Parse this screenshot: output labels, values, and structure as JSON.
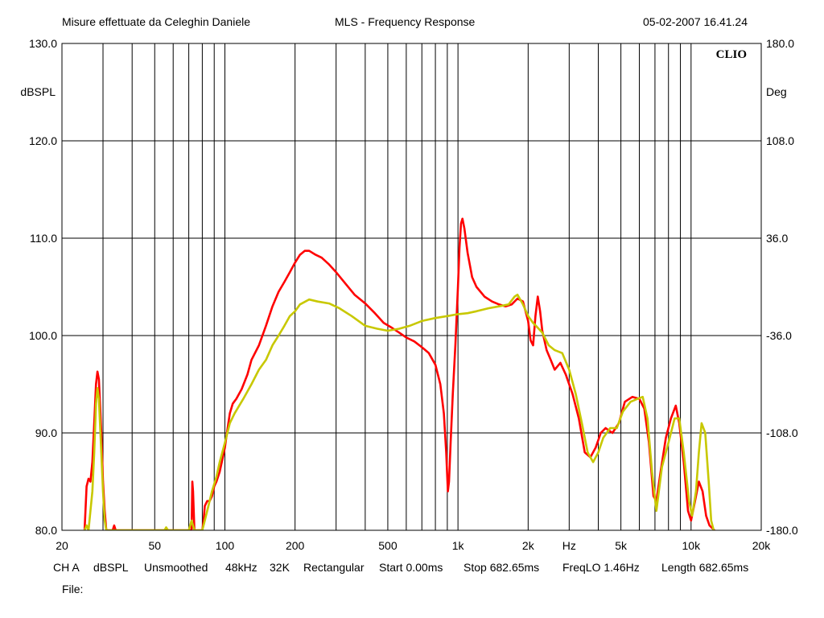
{
  "header": {
    "left": "Misure effettuate da Celeghin Daniele",
    "center": "MLS - Frequency Response",
    "right": "05-02-2007 16.41.24"
  },
  "brand": "CLIO",
  "footer": {
    "items": [
      "CH A",
      "dBSPL",
      "Unsmoothed",
      "48kHz",
      "32K",
      "Rectangular",
      "Start 0.00ms",
      "Stop 682.65ms",
      "FreqLO 1.46Hz",
      "Length 682.65ms"
    ],
    "file_label": "File:"
  },
  "chart_data": {
    "type": "line",
    "title": "MLS - Frequency Response",
    "xlabel": "Hz",
    "ylabel": "dBSPL",
    "y2label": "Deg",
    "xscale": "log",
    "xlim": [
      20,
      20000
    ],
    "ylim": [
      80,
      130
    ],
    "y2lim": [
      -180,
      180
    ],
    "grid": true,
    "x_ticks": [
      {
        "v": 20,
        "label": "20"
      },
      {
        "v": 50,
        "label": "50"
      },
      {
        "v": 100,
        "label": "100"
      },
      {
        "v": 200,
        "label": "200"
      },
      {
        "v": 500,
        "label": "500"
      },
      {
        "v": 1000,
        "label": "1k"
      },
      {
        "v": 2000,
        "label": "2k"
      },
      {
        "v": 5000,
        "label": "5k"
      },
      {
        "v": 10000,
        "label": "10k"
      },
      {
        "v": 20000,
        "label": "20k"
      }
    ],
    "y_ticks": [
      {
        "v": 130,
        "label": "130.0"
      },
      {
        "v": 120,
        "label": "120.0"
      },
      {
        "v": 110,
        "label": "110.0"
      },
      {
        "v": 100,
        "label": "100.0"
      },
      {
        "v": 90,
        "label": "90.0"
      },
      {
        "v": 80,
        "label": "80.0"
      }
    ],
    "y2_ticks": [
      {
        "v": 180,
        "label": "180.0"
      },
      {
        "v": 108,
        "label": "108.0"
      },
      {
        "v": 36,
        "label": "36.0"
      },
      {
        "v": -36,
        "label": "-36.0"
      },
      {
        "v": -108,
        "label": "-108.0"
      },
      {
        "v": -180,
        "label": "-180.0"
      }
    ],
    "series": [
      {
        "color": "#ff0000",
        "points": [
          [
            25,
            80
          ],
          [
            25.5,
            84.5
          ],
          [
            26,
            85.3
          ],
          [
            26.5,
            85
          ],
          [
            27,
            87
          ],
          [
            27.5,
            91
          ],
          [
            28,
            95
          ],
          [
            28.4,
            96.3
          ],
          [
            28.8,
            95.5
          ],
          [
            29.5,
            90
          ],
          [
            30,
            85
          ],
          [
            30.5,
            82
          ],
          [
            31,
            80
          ],
          [
            33,
            80
          ],
          [
            33.5,
            80.5
          ],
          [
            34,
            80
          ],
          [
            72,
            80
          ],
          [
            72.5,
            85
          ],
          [
            73,
            84
          ],
          [
            74,
            80
          ],
          [
            80,
            80
          ],
          [
            81,
            81
          ],
          [
            82,
            82.5
          ],
          [
            84,
            83
          ],
          [
            86,
            83
          ],
          [
            88,
            83.5
          ],
          [
            90,
            84.5
          ],
          [
            92,
            85
          ],
          [
            95,
            86
          ],
          [
            98,
            87.5
          ],
          [
            100,
            88.5
          ],
          [
            102,
            90
          ],
          [
            105,
            92
          ],
          [
            108,
            93
          ],
          [
            112,
            93.5
          ],
          [
            118,
            94.5
          ],
          [
            125,
            96
          ],
          [
            130,
            97.5
          ],
          [
            140,
            99
          ],
          [
            150,
            101
          ],
          [
            160,
            103
          ],
          [
            170,
            104.5
          ],
          [
            180,
            105.5
          ],
          [
            190,
            106.5
          ],
          [
            200,
            107.5
          ],
          [
            210,
            108.3
          ],
          [
            220,
            108.7
          ],
          [
            230,
            108.7
          ],
          [
            245,
            108.3
          ],
          [
            260,
            108
          ],
          [
            280,
            107.3
          ],
          [
            300,
            106.5
          ],
          [
            330,
            105.3
          ],
          [
            360,
            104.2
          ],
          [
            400,
            103.3
          ],
          [
            440,
            102.3
          ],
          [
            480,
            101.3
          ],
          [
            520,
            100.8
          ],
          [
            560,
            100.3
          ],
          [
            600,
            99.8
          ],
          [
            650,
            99.4
          ],
          [
            700,
            98.8
          ],
          [
            750,
            98.2
          ],
          [
            800,
            97
          ],
          [
            840,
            95
          ],
          [
            870,
            92
          ],
          [
            890,
            88
          ],
          [
            905,
            84
          ],
          [
            915,
            85
          ],
          [
            930,
            89
          ],
          [
            950,
            94
          ],
          [
            975,
            99
          ],
          [
            1000,
            105
          ],
          [
            1015,
            109
          ],
          [
            1030,
            111.5
          ],
          [
            1045,
            112
          ],
          [
            1065,
            111
          ],
          [
            1100,
            108.5
          ],
          [
            1150,
            106
          ],
          [
            1200,
            105
          ],
          [
            1300,
            104
          ],
          [
            1400,
            103.5
          ],
          [
            1500,
            103.2
          ],
          [
            1600,
            103
          ],
          [
            1700,
            103.2
          ],
          [
            1800,
            103.8
          ],
          [
            1900,
            103.5
          ],
          [
            2000,
            101.5
          ],
          [
            2050,
            99.5
          ],
          [
            2100,
            99
          ],
          [
            2150,
            102
          ],
          [
            2200,
            104
          ],
          [
            2250,
            102.5
          ],
          [
            2300,
            100.5
          ],
          [
            2400,
            98.5
          ],
          [
            2500,
            97.5
          ],
          [
            2600,
            96.5
          ],
          [
            2750,
            97.2
          ],
          [
            2900,
            96
          ],
          [
            3100,
            94
          ],
          [
            3300,
            91.5
          ],
          [
            3500,
            88
          ],
          [
            3700,
            87.5
          ],
          [
            3900,
            88.5
          ],
          [
            4100,
            90
          ],
          [
            4300,
            90.5
          ],
          [
            4600,
            90
          ],
          [
            4900,
            91
          ],
          [
            5200,
            93.2
          ],
          [
            5600,
            93.7
          ],
          [
            6000,
            93.5
          ],
          [
            6300,
            92.5
          ],
          [
            6600,
            89
          ],
          [
            6900,
            83.5
          ],
          [
            7100,
            83
          ],
          [
            7400,
            86
          ],
          [
            7800,
            89.5
          ],
          [
            8200,
            91.5
          ],
          [
            8600,
            92.8
          ],
          [
            8900,
            91
          ],
          [
            9300,
            87
          ],
          [
            9700,
            82
          ],
          [
            10000,
            81
          ],
          [
            10400,
            83
          ],
          [
            10800,
            85
          ],
          [
            11200,
            84
          ],
          [
            11600,
            81.5
          ],
          [
            12000,
            80.5
          ],
          [
            12600,
            80
          ]
        ]
      },
      {
        "color": "#c8c800",
        "points": [
          [
            25,
            80
          ],
          [
            25.5,
            80.5
          ],
          [
            26,
            80
          ],
          [
            27,
            84
          ],
          [
            27.5,
            88
          ],
          [
            28,
            93
          ],
          [
            28.4,
            94.6
          ],
          [
            28.8,
            93.5
          ],
          [
            29.5,
            88
          ],
          [
            30,
            84
          ],
          [
            30.5,
            81
          ],
          [
            31,
            80
          ],
          [
            55,
            80
          ],
          [
            56,
            80.3
          ],
          [
            57,
            80
          ],
          [
            70,
            80
          ],
          [
            72,
            81
          ],
          [
            74,
            80
          ],
          [
            80,
            80
          ],
          [
            82,
            81
          ],
          [
            85,
            82.5
          ],
          [
            88,
            84
          ],
          [
            92,
            85.5
          ],
          [
            95,
            87
          ],
          [
            100,
            89
          ],
          [
            105,
            91
          ],
          [
            110,
            92
          ],
          [
            120,
            93.5
          ],
          [
            130,
            95
          ],
          [
            140,
            96.5
          ],
          [
            150,
            97.5
          ],
          [
            160,
            99
          ],
          [
            170,
            100
          ],
          [
            180,
            101
          ],
          [
            190,
            102
          ],
          [
            200,
            102.5
          ],
          [
            210,
            103.2
          ],
          [
            230,
            103.7
          ],
          [
            250,
            103.5
          ],
          [
            280,
            103.3
          ],
          [
            310,
            102.8
          ],
          [
            350,
            102
          ],
          [
            400,
            101
          ],
          [
            450,
            100.7
          ],
          [
            500,
            100.5
          ],
          [
            560,
            100.7
          ],
          [
            620,
            101
          ],
          [
            700,
            101.5
          ],
          [
            800,
            101.8
          ],
          [
            900,
            102
          ],
          [
            1000,
            102.2
          ],
          [
            1100,
            102.3
          ],
          [
            1200,
            102.5
          ],
          [
            1350,
            102.8
          ],
          [
            1500,
            103
          ],
          [
            1650,
            103.2
          ],
          [
            1750,
            104
          ],
          [
            1800,
            104.2
          ],
          [
            1900,
            103.2
          ],
          [
            2000,
            102
          ],
          [
            2100,
            101.3
          ],
          [
            2200,
            100.8
          ],
          [
            2300,
            100.3
          ],
          [
            2450,
            99
          ],
          [
            2600,
            98.5
          ],
          [
            2800,
            98.2
          ],
          [
            3000,
            96.5
          ],
          [
            3200,
            94
          ],
          [
            3400,
            91
          ],
          [
            3600,
            88
          ],
          [
            3800,
            87
          ],
          [
            4000,
            88
          ],
          [
            4200,
            89.5
          ],
          [
            4500,
            90.5
          ],
          [
            4800,
            90.5
          ],
          [
            5100,
            92.2
          ],
          [
            5500,
            93.2
          ],
          [
            5900,
            93.5
          ],
          [
            6200,
            93.7
          ],
          [
            6500,
            91.5
          ],
          [
            6800,
            86
          ],
          [
            7100,
            82
          ],
          [
            7500,
            86.5
          ],
          [
            8000,
            89
          ],
          [
            8500,
            91.5
          ],
          [
            8900,
            91.5
          ],
          [
            9300,
            88
          ],
          [
            9800,
            83
          ],
          [
            10100,
            81.5
          ],
          [
            10500,
            84
          ],
          [
            10800,
            88
          ],
          [
            11100,
            91
          ],
          [
            11500,
            90
          ],
          [
            11900,
            85
          ],
          [
            12200,
            81
          ],
          [
            12500,
            80
          ]
        ]
      }
    ]
  }
}
